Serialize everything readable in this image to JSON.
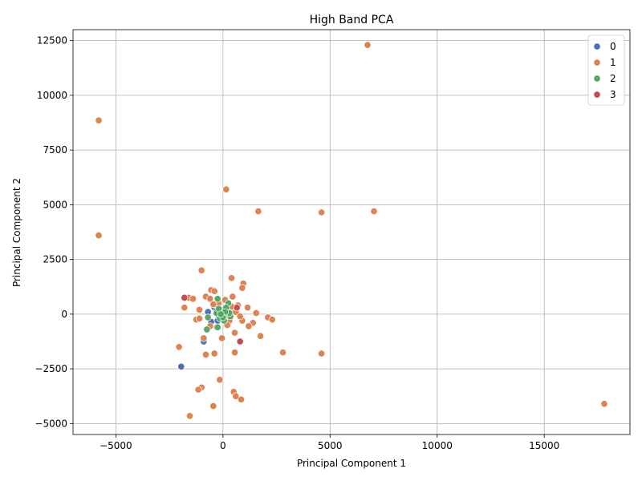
{
  "chart_data": {
    "type": "scatter",
    "title": "High Band PCA",
    "xlabel": "Principal Component 1",
    "ylabel": "Principal Component 2",
    "xlim": [
      -7000,
      19000
    ],
    "ylim": [
      -5500,
      13000
    ],
    "xticks": [
      -5000,
      0,
      5000,
      10000,
      15000
    ],
    "yticks": [
      -5000,
      -2500,
      0,
      2500,
      5000,
      7500,
      10000,
      12500
    ],
    "xtick_labels": [
      "−5000",
      "0",
      "5000",
      "10000",
      "15000"
    ],
    "ytick_labels": [
      "−5000",
      "−2500",
      "0",
      "2500",
      "5000",
      "7500",
      "10000",
      "12500"
    ],
    "grid": true,
    "legend_position": "top-right",
    "colors": {
      "0": "#4c72b0",
      "1": "#dd8452",
      "2": "#55a868",
      "3": "#c44e52"
    },
    "series": [
      {
        "name": "0",
        "points": [
          [
            -1950,
            -2400
          ],
          [
            -900,
            -1250
          ],
          [
            -700,
            100
          ],
          [
            -550,
            -350
          ],
          [
            -400,
            300
          ],
          [
            -300,
            150
          ],
          [
            -200,
            -100
          ],
          [
            -100,
            200
          ],
          [
            50,
            -150
          ],
          [
            150,
            50
          ],
          [
            250,
            -50
          ],
          [
            350,
            150
          ],
          [
            -250,
            -300
          ],
          [
            100,
            250
          ],
          [
            0,
            0
          ]
        ]
      },
      {
        "name": "1",
        "points": [
          [
            6750,
            12300
          ],
          [
            -5800,
            8850
          ],
          [
            -5800,
            3600
          ],
          [
            150,
            5700
          ],
          [
            1650,
            4700
          ],
          [
            4600,
            4650
          ],
          [
            7050,
            4700
          ],
          [
            -1000,
            2000
          ],
          [
            400,
            1650
          ],
          [
            950,
            1400
          ],
          [
            900,
            1200
          ],
          [
            -550,
            1100
          ],
          [
            -400,
            1050
          ],
          [
            -1600,
            750
          ],
          [
            -1400,
            700
          ],
          [
            -800,
            800
          ],
          [
            -600,
            700
          ],
          [
            450,
            800
          ],
          [
            -1800,
            300
          ],
          [
            -1100,
            200
          ],
          [
            1150,
            300
          ],
          [
            1550,
            50
          ],
          [
            2100,
            -150
          ],
          [
            2300,
            -250
          ],
          [
            1400,
            -400
          ],
          [
            1200,
            -550
          ],
          [
            900,
            -300
          ],
          [
            -1250,
            -250
          ],
          [
            -1100,
            -200
          ],
          [
            -600,
            -550
          ],
          [
            -50,
            -1100
          ],
          [
            1750,
            -1000
          ],
          [
            550,
            -850
          ],
          [
            -900,
            -1100
          ],
          [
            -2050,
            -1500
          ],
          [
            -800,
            -1850
          ],
          [
            -400,
            -1800
          ],
          [
            550,
            -1750
          ],
          [
            2800,
            -1750
          ],
          [
            4600,
            -1800
          ],
          [
            -150,
            -3000
          ],
          [
            -1000,
            -3350
          ],
          [
            -1150,
            -3450
          ],
          [
            500,
            -3550
          ],
          [
            600,
            -3750
          ],
          [
            850,
            -3900
          ],
          [
            -450,
            -4200
          ],
          [
            -1550,
            -4650
          ],
          [
            17800,
            -4100
          ],
          [
            700,
            400
          ],
          [
            -200,
            500
          ],
          [
            300,
            -300
          ],
          [
            600,
            100
          ],
          [
            -300,
            -600
          ],
          [
            100,
            650
          ],
          [
            800,
            -100
          ],
          [
            -700,
            -150
          ],
          [
            200,
            -500
          ],
          [
            -450,
            450
          ],
          [
            400,
            350
          ]
        ]
      },
      {
        "name": "2",
        "points": [
          [
            -250,
            700
          ],
          [
            250,
            500
          ],
          [
            -700,
            -150
          ],
          [
            -750,
            -700
          ],
          [
            -250,
            -600
          ],
          [
            -100,
            100
          ],
          [
            100,
            -50
          ],
          [
            0,
            200
          ],
          [
            -150,
            -200
          ],
          [
            200,
            150
          ],
          [
            350,
            -100
          ],
          [
            50,
            -300
          ],
          [
            -300,
            50
          ],
          [
            150,
            300
          ],
          [
            -50,
            -50
          ],
          [
            300,
            50
          ],
          [
            -200,
            250
          ],
          [
            100,
            100
          ],
          [
            0,
            -150
          ],
          [
            -100,
            0
          ]
        ]
      },
      {
        "name": "3",
        "points": [
          [
            -1800,
            750
          ],
          [
            650,
            300
          ],
          [
            800,
            -1250
          ]
        ]
      }
    ]
  }
}
